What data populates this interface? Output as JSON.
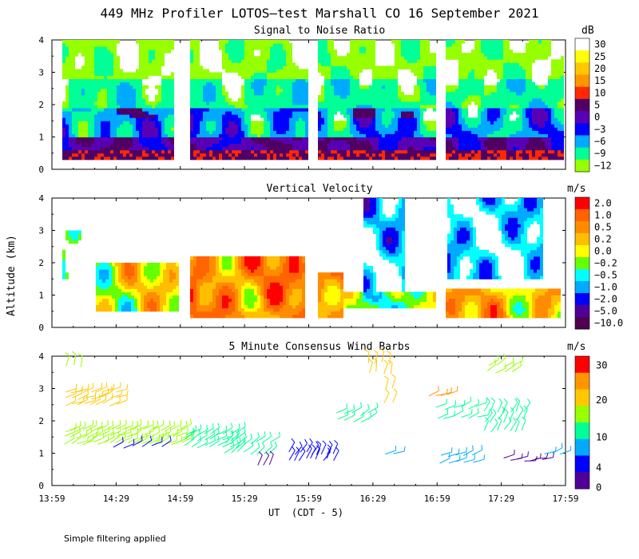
{
  "chart_data": {
    "title": "449 MHz Profiler LOTOS—test Marshall CO 16 September 2021",
    "xlabel": "UT  (CDT - 5)",
    "ylabel": "Altitude (km)",
    "x_ticks": [
      "13:59",
      "14:29",
      "14:59",
      "15:29",
      "15:59",
      "16:29",
      "16:59",
      "17:29",
      "17:59"
    ],
    "y_ticks": [
      "0",
      "1",
      "2",
      "3",
      "4"
    ],
    "ylim": [
      0,
      4
    ],
    "panels": [
      {
        "type": "heatmap",
        "title": "Signal to Noise Ratio",
        "colorbar_unit": "dB",
        "colorbar_labels": [
          "30",
          "25",
          "20",
          "15",
          "10",
          "5",
          "0",
          "−3",
          "−6",
          "−9",
          "−12"
        ],
        "colors": [
          "#ffffff",
          "#ffff00",
          "#ffc800",
          "#ff9600",
          "#ff2800",
          "#500064",
          "#5a00b4",
          "#0000ff",
          "#00aaff",
          "#00ff96",
          "#96ff00"
        ],
        "data_segments_ut": [
          [
            "14:00",
            "14:45"
          ],
          [
            "14:59",
            "15:53"
          ],
          [
            "15:59",
            "16:59"
          ],
          [
            "17:04",
            "17:59"
          ]
        ],
        "description_altitude_km": {
          "strong_near_ground_dB": 10,
          "mid_layer_km": [
            0.9,
            1.9
          ]
        }
      },
      {
        "type": "heatmap",
        "title": "Vertical Velocity",
        "colorbar_unit": "m/s",
        "colorbar_labels": [
          "2.0",
          "1.0",
          "0.5",
          "0.2",
          "0.0",
          "−0.2",
          "−0.5",
          "−1.0",
          "−2.0",
          "−5.0",
          "−10.0"
        ],
        "colors": [
          "#ff0000",
          "#ff6400",
          "#ff8c00",
          "#ffbe00",
          "#ffff00",
          "#64ff00",
          "#00ffff",
          "#00aaff",
          "#0000ff",
          "#500096",
          "#500050"
        ]
      },
      {
        "type": "scatter",
        "title": "5 Minute Consensus Wind Barbs",
        "colorbar_unit": "m/s",
        "colorbar_labels": [
          "30",
          "20",
          "10",
          "4",
          "0"
        ],
        "colors": [
          "#ff0000",
          "#ff9600",
          "#ffc800",
          "#96ff00",
          "#00ff96",
          "#00aaff",
          "#0000ff",
          "#500096"
        ]
      }
    ]
  },
  "footnote": "Simple filtering applied"
}
